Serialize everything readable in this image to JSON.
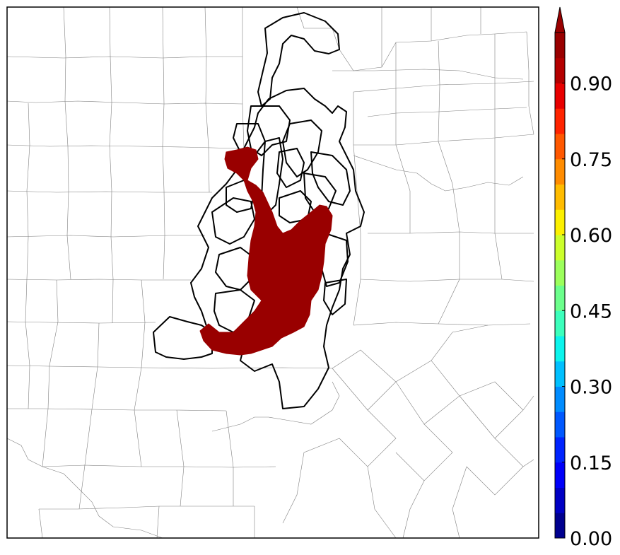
{
  "map": {
    "fill_color": "#990000",
    "outline_color": "#000000",
    "border_color": "#7f7f7f",
    "background": "#ffffff"
  },
  "colorbar": {
    "levels": [
      0.0,
      0.05,
      0.1,
      0.15,
      0.2,
      0.25,
      0.3,
      0.35,
      0.4,
      0.45,
      0.5,
      0.55,
      0.6,
      0.65,
      0.7,
      0.75,
      0.8,
      0.85,
      0.9,
      0.95,
      1.0
    ],
    "colors": [
      "#00008f",
      "#0000c4",
      "#0000fa",
      "#0024ff",
      "#0058ff",
      "#008cff",
      "#00c0ff",
      "#0cf4ec",
      "#3cffbc",
      "#6cff8c",
      "#9cff5c",
      "#ccff2c",
      "#fcf000",
      "#ffbc00",
      "#ff8c00",
      "#ff5800",
      "#ff2400",
      "#e80000",
      "#b40000",
      "#990000"
    ],
    "extend": "max",
    "ticks": [
      {
        "value": 0.0,
        "label": "0.00"
      },
      {
        "value": 0.15,
        "label": "0.15"
      },
      {
        "value": 0.3,
        "label": "0.30"
      },
      {
        "value": 0.45,
        "label": "0.45"
      },
      {
        "value": 0.6,
        "label": "0.60"
      },
      {
        "value": 0.75,
        "label": "0.75"
      },
      {
        "value": 0.9,
        "label": "0.90"
      }
    ]
  }
}
